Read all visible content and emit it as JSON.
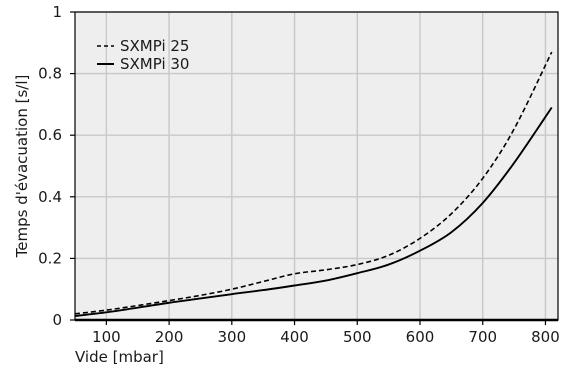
{
  "chart_data": {
    "type": "line",
    "title": "",
    "xlabel": "Vide [mbar]",
    "ylabel": "Temps d'évacuation [s/l]",
    "xlim": [
      50,
      820
    ],
    "ylim": [
      0,
      1
    ],
    "x_ticks": [
      100,
      200,
      300,
      400,
      500,
      600,
      700,
      800
    ],
    "y_ticks": [
      0,
      0.2,
      0.4,
      0.6,
      0.8,
      1
    ],
    "y_tick_labels": [
      "0",
      "0.2",
      "0.4",
      "0.6",
      "0.8",
      "1"
    ],
    "grid": true,
    "legend_position": "top-left",
    "colors": {
      "plot_background": "#eeeeee",
      "grid": "#c8c8c8",
      "line": "#000000"
    },
    "series": [
      {
        "name": "SXMPi 25",
        "style": "dashed",
        "x": [
          50,
          100,
          150,
          200,
          250,
          300,
          350,
          400,
          450,
          500,
          550,
          600,
          650,
          700,
          750,
          810
        ],
        "y": [
          0.02,
          0.032,
          0.047,
          0.063,
          0.08,
          0.1,
          0.125,
          0.15,
          0.163,
          0.18,
          0.21,
          0.265,
          0.345,
          0.46,
          0.62,
          0.87
        ]
      },
      {
        "name": "SXMPi 30",
        "style": "solid",
        "x": [
          50,
          100,
          150,
          200,
          250,
          300,
          350,
          400,
          450,
          500,
          550,
          600,
          650,
          700,
          750,
          810
        ],
        "y": [
          0.013,
          0.025,
          0.04,
          0.056,
          0.07,
          0.084,
          0.097,
          0.112,
          0.128,
          0.152,
          0.18,
          0.225,
          0.285,
          0.38,
          0.51,
          0.69
        ]
      }
    ]
  }
}
